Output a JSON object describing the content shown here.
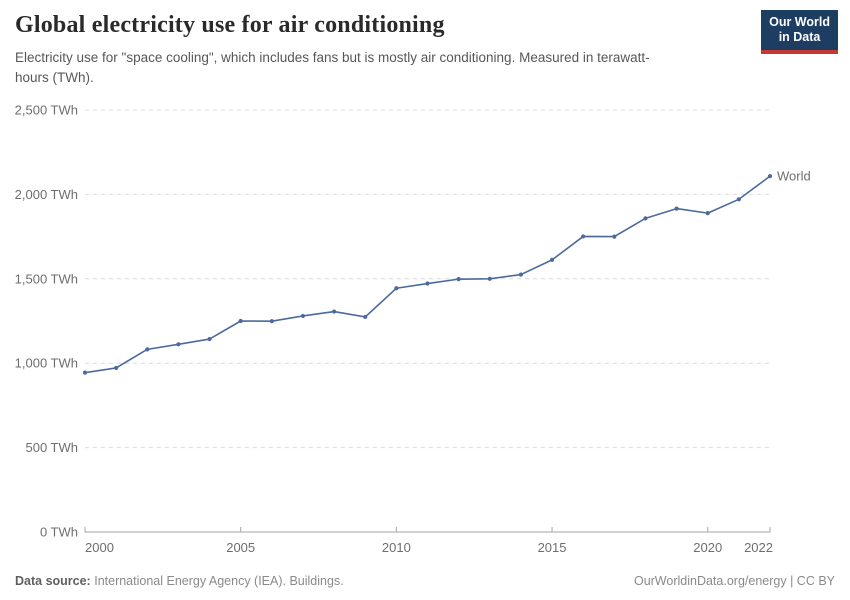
{
  "header": {
    "title": "Global electricity use for air conditioning",
    "subtitle": "Electricity use for \"space cooling\", which includes fans but is mostly air conditioning. Measured in terawatt-hours (TWh).",
    "logo": {
      "line1": "Our World",
      "line2": "in Data"
    }
  },
  "chart_data": {
    "type": "line",
    "title": "Global electricity use for air conditioning",
    "xlabel": "",
    "ylabel": "TWh",
    "ylim": [
      0,
      2500
    ],
    "grid": "horizontal-dashed",
    "legend_position": "end-of-line-label",
    "y_ticks": [
      {
        "value": 0,
        "label": "0 TWh"
      },
      {
        "value": 500,
        "label": "500 TWh"
      },
      {
        "value": 1000,
        "label": "1,000 TWh"
      },
      {
        "value": 1500,
        "label": "1,500 TWh"
      },
      {
        "value": 2000,
        "label": "2,000 TWh"
      },
      {
        "value": 2500,
        "label": "2,500 TWh"
      }
    ],
    "x_ticks": [
      {
        "year": 2000,
        "label": "2000",
        "anchor": "start",
        "tick": false
      },
      {
        "year": 2005,
        "label": "2005",
        "anchor": "middle",
        "tick": true
      },
      {
        "year": 2010,
        "label": "2010",
        "anchor": "middle",
        "tick": true
      },
      {
        "year": 2015,
        "label": "2015",
        "anchor": "middle",
        "tick": true
      },
      {
        "year": 2020,
        "label": "2020",
        "anchor": "middle",
        "tick": true
      },
      {
        "year": 2022,
        "label": "2022",
        "anchor": "end",
        "tick": false
      }
    ],
    "series": [
      {
        "name": "World",
        "color": "#4c6a9c",
        "x": [
          2000,
          2001,
          2002,
          2003,
          2004,
          2005,
          2006,
          2007,
          2008,
          2009,
          2010,
          2011,
          2012,
          2013,
          2014,
          2015,
          2016,
          2017,
          2018,
          2019,
          2020,
          2021,
          2022
        ],
        "values": [
          944,
          972,
          1082,
          1112,
          1143,
          1250,
          1249,
          1280,
          1306,
          1274,
          1444,
          1472,
          1498,
          1500,
          1525,
          1612,
          1751,
          1750,
          1858,
          1916,
          1889,
          1971,
          2108
        ]
      }
    ]
  },
  "footer": {
    "datasource_label": "Data source:",
    "datasource_text": "International Energy Agency (IEA). Buildings.",
    "link": "OurWorldinData.org/energy",
    "separator": " | ",
    "license": "CC BY"
  },
  "colors": {
    "line": "#4c6a9c",
    "logo_bg": "#1d3d63",
    "logo_accent": "#c43a32",
    "grid": "#dcdcdc",
    "axis": "#a5a5a5",
    "tick_text": "#6e6e6e"
  }
}
